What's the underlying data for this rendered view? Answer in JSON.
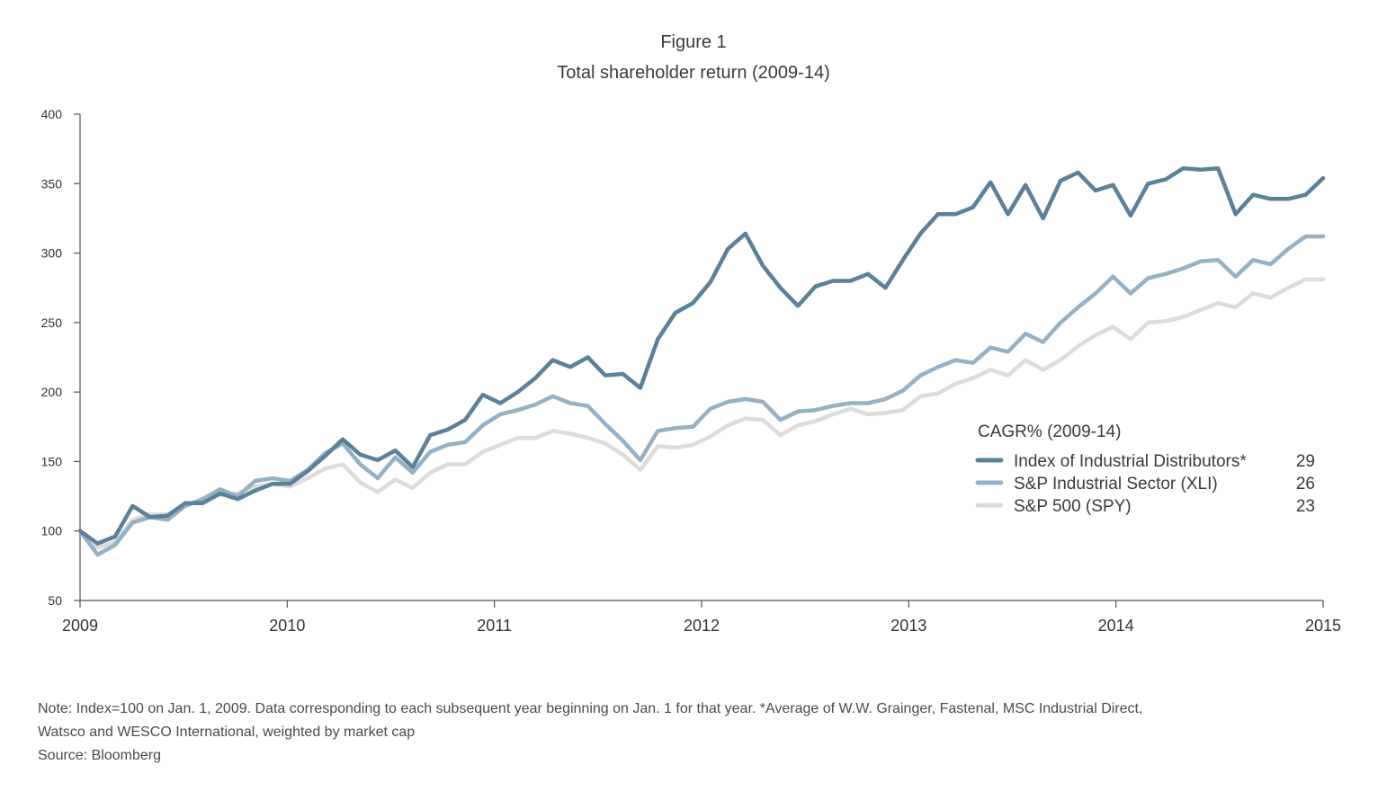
{
  "figure_label": "Figure 1",
  "chart_data": {
    "type": "line",
    "title": "Total shareholder return (2009-14)",
    "xlabel": "",
    "ylabel": "",
    "xlim": [
      2009,
      2015
    ],
    "ylim": [
      50,
      400
    ],
    "x_ticks": [
      "2009",
      "2010",
      "2011",
      "2012",
      "2013",
      "2014",
      "2015"
    ],
    "y_ticks": [
      50,
      100,
      150,
      200,
      250,
      300,
      350,
      400
    ],
    "grid": false,
    "legend": {
      "title": "CAGR% (2009-14)",
      "placement": "right"
    },
    "series": [
      {
        "name": "Index of Industrial Distributors*",
        "cagr": "29",
        "color": "#5b8199",
        "values": [
          100,
          91,
          96,
          118,
          110,
          111,
          120,
          120,
          127,
          123,
          129,
          134,
          134,
          143,
          154,
          166,
          155,
          151,
          158,
          146,
          169,
          173,
          180,
          198,
          192,
          200,
          210,
          223,
          218,
          225,
          212,
          213,
          203,
          238,
          257,
          264,
          279,
          303,
          314,
          291,
          275,
          262,
          276,
          280,
          280,
          285,
          275,
          295,
          314,
          328,
          328,
          333,
          351,
          328,
          349,
          325,
          352,
          358,
          345,
          349,
          327,
          350,
          353,
          361,
          360,
          361,
          328,
          342,
          339,
          339,
          342,
          354
        ]
      },
      {
        "name": "S&P Industrial Sector (XLI)",
        "cagr": "26",
        "color": "#96b1c3",
        "values": [
          100,
          83,
          90,
          106,
          110,
          108,
          118,
          123,
          130,
          125,
          136,
          138,
          136,
          144,
          156,
          163,
          148,
          138,
          153,
          142,
          157,
          162,
          164,
          176,
          184,
          187,
          191,
          197,
          192,
          190,
          177,
          165,
          151,
          172,
          174,
          175,
          188,
          193,
          195,
          193,
          180,
          186,
          187,
          190,
          192,
          192,
          195,
          201,
          212,
          218,
          223,
          221,
          232,
          229,
          242,
          236,
          250,
          261,
          271,
          283,
          271,
          282,
          285,
          289,
          294,
          295,
          283,
          295,
          292,
          303,
          312,
          312
        ]
      },
      {
        "name": "S&P 500 (SPY)",
        "cagr": "23",
        "color": "#dcdcdc",
        "values": [
          100,
          88,
          92,
          108,
          112,
          112,
          118,
          122,
          126,
          127,
          132,
          134,
          132,
          138,
          145,
          148,
          135,
          128,
          137,
          131,
          142,
          148,
          148,
          157,
          162,
          167,
          167,
          172,
          170,
          167,
          163,
          155,
          144,
          161,
          160,
          162,
          168,
          176,
          181,
          180,
          169,
          176,
          179,
          184,
          188,
          184,
          185,
          187,
          197,
          199,
          206,
          210,
          216,
          212,
          223,
          216,
          223,
          233,
          241,
          247,
          238,
          250,
          251,
          254,
          259,
          264,
          261,
          271,
          268,
          275,
          281,
          281
        ]
      }
    ]
  },
  "notes": {
    "line1": "Note: Index=100 on Jan. 1, 2009. Data corresponding to each subsequent year beginning on Jan. 1 for that year. *Average of W.W. Grainger, Fastenal, MSC Industrial Direct,",
    "line2": "Watsco and WESCO International, weighted by market cap",
    "source": "Source: Bloomberg"
  }
}
